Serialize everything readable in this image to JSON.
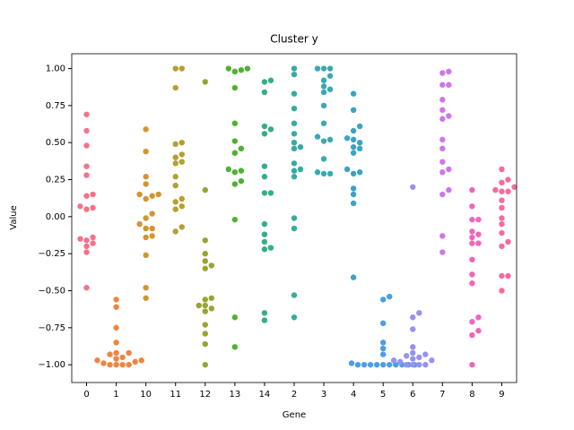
{
  "chart_data": {
    "type": "swarm",
    "title": "Cluster y",
    "x_label": "Gene",
    "y_label": "Value",
    "categories": [
      "0",
      "1",
      "10",
      "11",
      "12",
      "13",
      "14",
      "2",
      "3",
      "4",
      "5",
      "6",
      "7",
      "8",
      "9"
    ],
    "colors": [
      "#f77189",
      "#ee8540",
      "#d4952f",
      "#b3a030",
      "#97a431",
      "#50b131",
      "#34af84",
      "#37ab9f",
      "#39a9b1",
      "#3ba3c4",
      "#4a9ee8",
      "#9692f0",
      "#cf75ec",
      "#ef65c0",
      "#f66b9d"
    ],
    "values": [
      [
        0.69,
        0.58,
        0.48,
        0.34,
        0.28,
        0.15,
        0.14,
        0.06,
        0.07,
        0.05,
        -0.14,
        -0.16,
        -0.18,
        -0.15,
        -0.2,
        -0.24,
        -0.48
      ],
      [
        -0.56,
        -0.61,
        -0.75,
        -0.85,
        -0.92,
        -0.93,
        -0.95,
        -0.97,
        -0.97,
        -0.98,
        -0.99,
        -1,
        -1,
        -1,
        -1,
        -0.96,
        -0.92
      ],
      [
        0.59,
        0.44,
        0.27,
        0.22,
        0.15,
        0.15,
        0.14,
        0.12,
        0.02,
        -0.01,
        -0.05,
        -0.08,
        -0.08,
        -0.13,
        -0.14,
        -0.26,
        -0.48,
        -0.55
      ],
      [
        1,
        1,
        0.87,
        0.5,
        0.49,
        0.42,
        0.4,
        0.37,
        0.36,
        0.27,
        0.21,
        0.12,
        0.1,
        0.07,
        0.05,
        -0.07,
        -0.1
      ],
      [
        0.91,
        0.18,
        -0.16,
        -0.25,
        -0.3,
        -0.33,
        -0.35,
        -0.55,
        -0.56,
        -0.6,
        -0.6,
        -0.62,
        -0.64,
        -0.73,
        -0.79,
        -0.86,
        -1
      ],
      [
        1,
        1,
        0.99,
        0.98,
        0.87,
        0.63,
        0.51,
        0.46,
        0.43,
        0.31,
        0.3,
        0.32,
        0.24,
        0.22,
        -0.02,
        -0.68,
        -0.88
      ],
      [
        0.92,
        0.91,
        0.84,
        0.61,
        0.59,
        0.56,
        0.34,
        0.27,
        0.16,
        0.16,
        -0.05,
        -0.12,
        -0.17,
        -0.21,
        -0.22,
        -0.65,
        -0.7
      ],
      [
        1,
        0.96,
        0.83,
        0.73,
        0.63,
        0.56,
        0.5,
        0.47,
        0.46,
        0.36,
        0.32,
        0.31,
        0.27,
        -0.01,
        -0.08,
        -0.53,
        -0.68
      ],
      [
        1,
        1,
        1,
        0.95,
        0.92,
        0.88,
        0.86,
        0.84,
        0.75,
        0.63,
        0.54,
        0.52,
        0.51,
        0.39,
        0.3,
        0.29,
        0.29
      ],
      [
        0.83,
        0.72,
        0.61,
        0.58,
        0.53,
        0.52,
        0.5,
        0.47,
        0.46,
        0.43,
        0.32,
        0.3,
        0.29,
        0.19,
        0.15,
        0.09,
        -0.41
      ],
      [
        -0.54,
        -0.56,
        -0.72,
        -0.85,
        -0.89,
        -0.93,
        -0.99,
        -1,
        -1,
        -1,
        -1,
        -1,
        -1,
        -1,
        -1,
        -1,
        -1
      ],
      [
        0.2,
        -0.65,
        -0.68,
        -0.76,
        -0.88,
        -0.92,
        -0.94,
        -0.93,
        -0.95,
        -0.97,
        -0.97,
        -0.98,
        -1,
        -1,
        -1,
        -1,
        -0.96
      ],
      [
        0.98,
        0.97,
        0.89,
        0.89,
        0.79,
        0.72,
        0.66,
        0.68,
        0.52,
        0.46,
        0.37,
        0.32,
        0.3,
        0.18,
        0.15,
        -0.13,
        -0.24
      ],
      [
        0.18,
        0.07,
        -0.02,
        -0.02,
        -0.1,
        -0.12,
        -0.14,
        -0.18,
        -0.18,
        -0.29,
        -0.39,
        -0.45,
        -0.68,
        -0.71,
        -0.77,
        -0.8,
        -1
      ],
      [
        0.32,
        0.25,
        0.23,
        0.2,
        0.18,
        0.17,
        0.17,
        0.11,
        0.06,
        -0.01,
        -0.05,
        -0.11,
        -0.17,
        -0.2,
        -0.4,
        -0.4,
        -0.5
      ]
    ],
    "ylim": [
      -1.12,
      1.1
    ],
    "yticks": [
      {
        "value": -1,
        "label": "−1.00"
      },
      {
        "value": -0.75,
        "label": "−0.75"
      },
      {
        "value": -0.5,
        "label": "−0.50"
      },
      {
        "value": -0.25,
        "label": "−0.25"
      },
      {
        "value": 0,
        "label": "0.00"
      },
      {
        "value": 0.25,
        "label": "0.25"
      },
      {
        "value": 0.5,
        "label": "0.50"
      },
      {
        "value": 0.75,
        "label": "0.75"
      },
      {
        "value": 1,
        "label": "1.00"
      }
    ],
    "grid": false
  }
}
